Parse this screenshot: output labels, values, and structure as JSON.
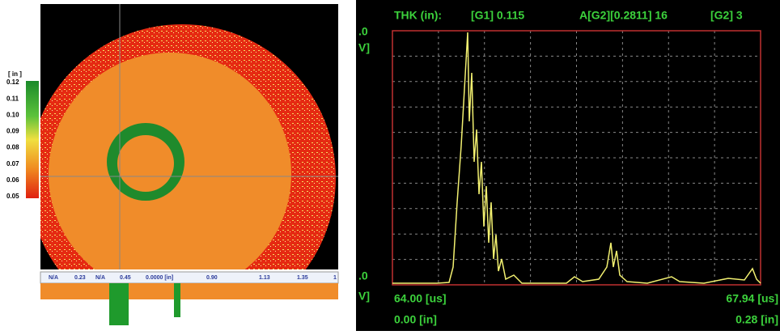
{
  "cscan": {
    "scale_unit": "[ in ]",
    "scale_labels": [
      "0.12",
      "0.11",
      "0.10",
      "0.09",
      "0.08",
      "0.07",
      "0.06",
      "0.05"
    ],
    "ruler_labels": [
      "N/A",
      "0.23",
      "N/A",
      "0.45",
      "0.0000 [in]",
      "0.90",
      "1.13",
      "1.35",
      "1"
    ]
  },
  "ascan": {
    "header": [
      "THK (in):",
      "[G1] 0.115",
      "A[G2][0.2811] 16",
      "[G2] 3"
    ],
    "y_top": ".0",
    "y_top_unit": "V]",
    "y_bottom": ".0",
    "y_bottom_unit": "V]",
    "time_start": "64.00 [us]",
    "time_end": "67.94 [us]",
    "depth_start": "0.00 [in]",
    "depth_end": "0.28 [in]"
  }
}
